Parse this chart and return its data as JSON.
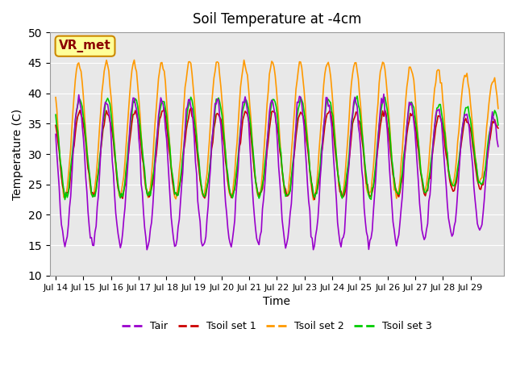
{
  "title": "Soil Temperature at -4cm",
  "xlabel": "Time",
  "ylabel": "Temperature (C)",
  "ylim": [
    10,
    50
  ],
  "yticks": [
    10,
    15,
    20,
    25,
    30,
    35,
    40,
    45,
    50
  ],
  "colors": {
    "Tair": "#9900cc",
    "Tsoil_set1": "#cc0000",
    "Tsoil_set2": "#ff9900",
    "Tsoil_set3": "#00cc00"
  },
  "legend_labels": [
    "Tair",
    "Tsoil set 1",
    "Tsoil set 2",
    "Tsoil set 3"
  ],
  "bg_color": "#e8e8e8",
  "annotation_text": "VR_met",
  "annotation_bg": "#ffff99",
  "annotation_border": "#cc8800",
  "xtick_labels": [
    "Jul 14",
    "Jul 15",
    "Jul 16",
    "Jul 17",
    "Jul 18",
    "Jul 19",
    "Jul 20",
    "Jul 21",
    "Jul 22",
    "Jul 23",
    "Jul 24",
    "Jul 25",
    "Jul 26",
    "Jul 27",
    "Jul 28",
    "Jul 29"
  ],
  "n_days": 16,
  "hours_per_day": 24
}
